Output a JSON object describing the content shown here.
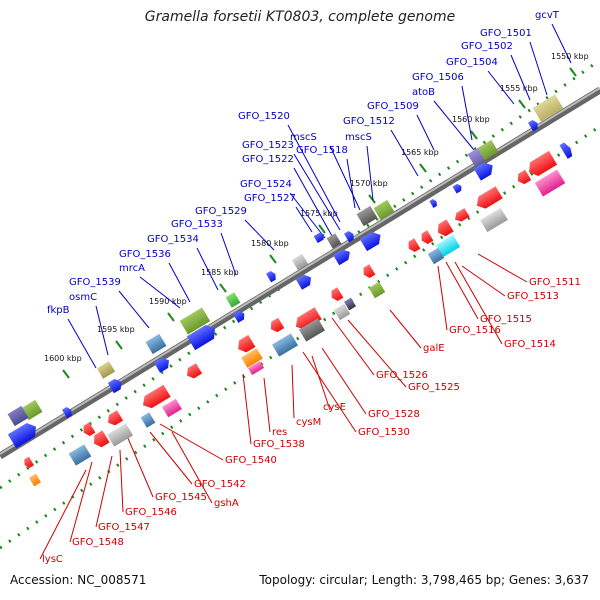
{
  "title": "Gramella forsetii KT0803, complete genome",
  "footer": {
    "accession": "Accession: NC_008571",
    "summary": "Topology: circular; Length: 3,798,465 bp; Genes: 3,637"
  },
  "colors": {
    "backbone": "#777777",
    "tick": "#1a8a1a",
    "forward_label": "#0000cc",
    "reverse_label": "#cc0000"
  },
  "kbp_labels": [
    "1550 kbp",
    "1555 kbp",
    "1560 kbp",
    "1565 kbp",
    "1570 kbp",
    "1575 kbp",
    "1580 kbp",
    "1585 kbp",
    "1590 kbp",
    "1595 kbp",
    "1600 kbp"
  ],
  "forward_genes": [
    "gcvT",
    "GFO_1501",
    "GFO_1502",
    "GFO_1504",
    "GFO_1506",
    "atoB",
    "GFO_1509",
    "GFO_1512",
    "mscS",
    "GFO_1520",
    "mscS",
    "GFO_1518",
    "GFO_1523",
    "GFO_1522",
    "GFO_1524",
    "GFO_1527",
    "GFO_1529",
    "GFO_1533",
    "GFO_1534",
    "GFO_1536",
    "mrcA",
    "GFO_1539",
    "osmC",
    "fkpB"
  ],
  "reverse_genes": [
    "GFO_1511",
    "GFO_1513",
    "GFO_1515",
    "GFO_1516",
    "GFO_1514",
    "galE",
    "GFO_1526",
    "GFO_1525",
    "GFO_1528",
    "cysE",
    "GFO_1530",
    "cysM",
    "res",
    "GFO_1538",
    "GFO_1540",
    "GFO_1542",
    "gshA",
    "GFO_1545",
    "GFO_1546",
    "GFO_1547",
    "GFO_1548",
    "lysC"
  ]
}
